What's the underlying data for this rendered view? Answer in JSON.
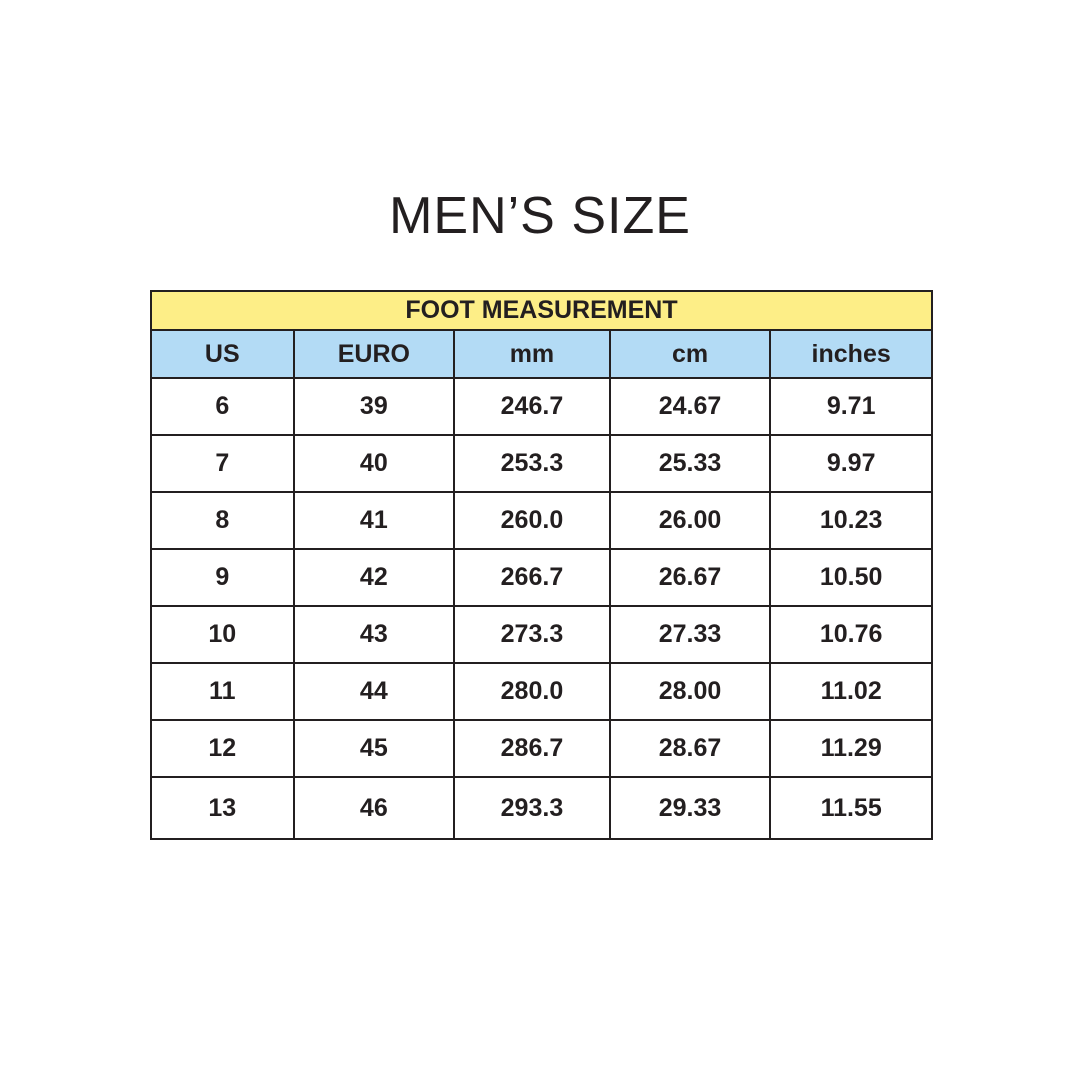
{
  "title": "MEN’S SIZE",
  "table": {
    "caption": "FOOT MEASUREMENT",
    "columns": [
      "US",
      "EURO",
      "mm",
      "cm",
      "inches"
    ],
    "rows": [
      [
        "6",
        "39",
        "246.7",
        "24.67",
        "9.71"
      ],
      [
        "7",
        "40",
        "253.3",
        "25.33",
        "9.97"
      ],
      [
        "8",
        "41",
        "260.0",
        "26.00",
        "10.23"
      ],
      [
        "9",
        "42",
        "266.7",
        "26.67",
        "10.50"
      ],
      [
        "10",
        "43",
        "273.3",
        "27.33",
        "10.76"
      ],
      [
        "11",
        "44",
        "280.0",
        "28.00",
        "11.02"
      ],
      [
        "12",
        "45",
        "286.7",
        "28.67",
        "11.29"
      ],
      [
        "13",
        "46",
        "293.3",
        "29.33",
        "11.55"
      ]
    ]
  },
  "colors": {
    "caption_bg": "#fdee87",
    "header_bg": "#b3dbf5",
    "text": "#231f20"
  }
}
